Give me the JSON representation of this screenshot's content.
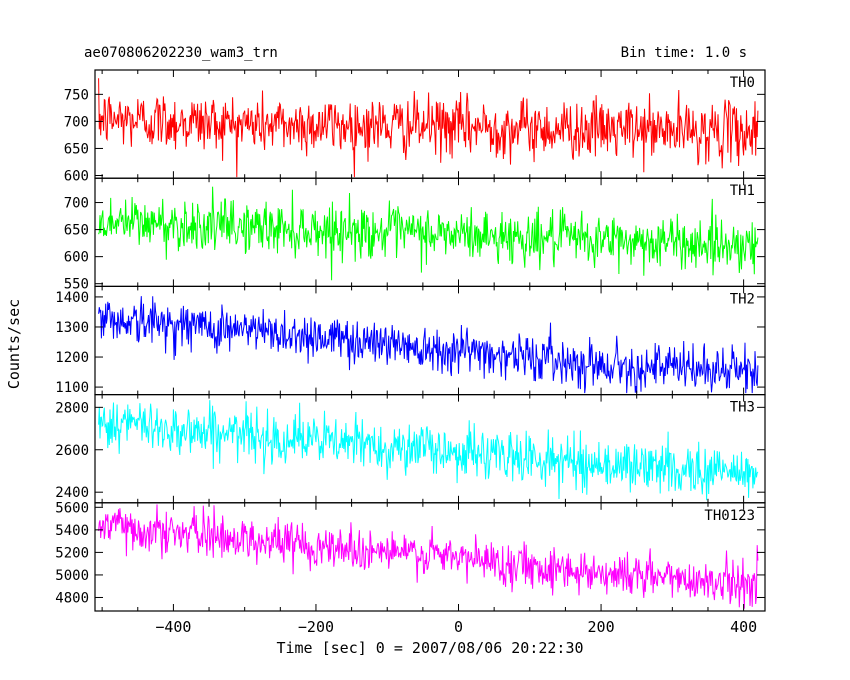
{
  "chart_data": {
    "type": "line",
    "title": "ae070806202230_wam3_trn",
    "subtitle": "Bin time: 1.0 s",
    "xlabel": "Time [sec] 0 = 2007/08/06 20:22:30",
    "ylabel": "Counts/sec",
    "xlim": [
      -510,
      430
    ],
    "x_ticks": [
      -400,
      -200,
      0,
      200,
      400
    ],
    "x_tick_labels": [
      "−400",
      "−200",
      "0",
      "200",
      "400"
    ],
    "x_data_range": [
      -505,
      420
    ],
    "bin_time_s": 1.0,
    "grid": false,
    "panels": [
      {
        "name": "TH0",
        "color": "#ff0000",
        "ylim": [
          595,
          795
        ],
        "y_ticks": [
          600,
          650,
          700,
          750
        ],
        "trend": [
          [
            -505,
            705
          ],
          [
            -300,
            695
          ],
          [
            0,
            690
          ],
          [
            200,
            685
          ],
          [
            420,
            680
          ]
        ],
        "noise_sigma": 27,
        "y_clip": [
          597,
          795
        ]
      },
      {
        "name": "TH1",
        "color": "#00ff00",
        "ylim": [
          545,
          745
        ],
        "y_ticks": [
          550,
          600,
          650,
          700
        ],
        "trend": [
          [
            -505,
            665
          ],
          [
            -300,
            655
          ],
          [
            0,
            640
          ],
          [
            200,
            630
          ],
          [
            420,
            622
          ]
        ],
        "noise_sigma": 24,
        "y_clip": [
          547,
          745
        ]
      },
      {
        "name": "TH2",
        "color": "#0000ff",
        "ylim": [
          1075,
          1435
        ],
        "y_ticks": [
          1100,
          1200,
          1300,
          1400
        ],
        "trend": [
          [
            -505,
            1330
          ],
          [
            -300,
            1290
          ],
          [
            0,
            1225
          ],
          [
            200,
            1175
          ],
          [
            420,
            1150
          ]
        ],
        "noise_sigma": 38,
        "y_clip": [
          1080,
          1435
        ]
      },
      {
        "name": "TH3",
        "color": "#00ffff",
        "ylim": [
          2350,
          2860
        ],
        "y_ticks": [
          2400,
          2600,
          2800
        ],
        "trend": [
          [
            -505,
            2730
          ],
          [
            -300,
            2670
          ],
          [
            0,
            2590
          ],
          [
            200,
            2530
          ],
          [
            420,
            2490
          ]
        ],
        "noise_sigma": 60,
        "y_clip": [
          2360,
          2860
        ]
      },
      {
        "name": "TH0123",
        "color": "#ff00ff",
        "ylim": [
          4680,
          5640
        ],
        "y_ticks": [
          4800,
          5000,
          5200,
          5400,
          5600
        ],
        "trend": [
          [
            -505,
            5440
          ],
          [
            -300,
            5320
          ],
          [
            0,
            5150
          ],
          [
            200,
            5020
          ],
          [
            420,
            4920
          ]
        ],
        "noise_sigma": 95,
        "y_clip": [
          4700,
          5640
        ]
      }
    ]
  }
}
